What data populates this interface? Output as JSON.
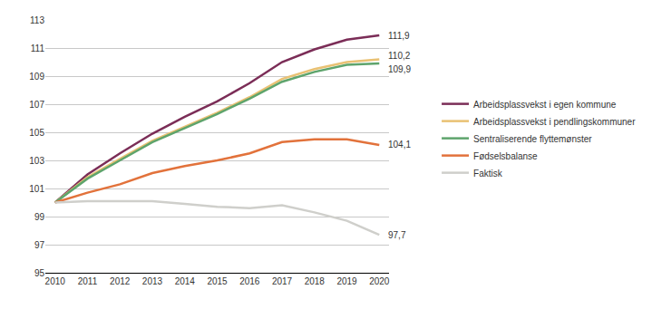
{
  "chart_data": {
    "type": "line",
    "x": [
      2010,
      2011,
      2012,
      2013,
      2014,
      2015,
      2016,
      2017,
      2018,
      2019,
      2020
    ],
    "xlim": [
      2009.7,
      2020.3
    ],
    "xticks": [
      2010,
      2011,
      2012,
      2013,
      2014,
      2015,
      2016,
      2017,
      2018,
      2019,
      2020
    ],
    "ylim": [
      95,
      113
    ],
    "yticks": [
      95,
      97,
      99,
      101,
      103,
      105,
      107,
      109,
      111,
      113
    ],
    "grid": true,
    "legend": "right",
    "data_labels": true,
    "series": [
      {
        "name": "Arbeidsplassvekst i egen kommune",
        "color": "#7b2d57",
        "values": [
          100,
          102.0,
          103.5,
          104.9,
          106.1,
          107.2,
          108.5,
          110.0,
          110.9,
          111.6,
          111.9
        ],
        "value_labels": [
          null,
          null,
          null,
          null,
          null,
          null,
          null,
          null,
          null,
          null,
          "111,9"
        ]
      },
      {
        "name": "Arbeidsplassvekst i pendlingskommuner",
        "color": "#e9c173",
        "values": [
          100,
          101.8,
          103.1,
          104.4,
          105.4,
          106.4,
          107.5,
          108.8,
          109.5,
          110.0,
          110.2
        ],
        "value_labels": [
          null,
          null,
          null,
          null,
          null,
          null,
          null,
          null,
          null,
          null,
          "110,2"
        ]
      },
      {
        "name": "Sentraliserende flyttemønster",
        "color": "#5ea46c",
        "values": [
          100,
          101.7,
          103.0,
          104.3,
          105.3,
          106.3,
          107.4,
          108.6,
          109.3,
          109.8,
          109.9
        ],
        "value_labels": [
          null,
          null,
          null,
          null,
          null,
          null,
          null,
          null,
          null,
          null,
          "109,9"
        ]
      },
      {
        "name": "Fødselsbalanse",
        "color": "#e2723b",
        "values": [
          100,
          100.7,
          101.3,
          102.1,
          102.6,
          103.0,
          103.5,
          104.3,
          104.5,
          104.5,
          104.1
        ],
        "value_labels": [
          null,
          null,
          null,
          null,
          null,
          null,
          null,
          null,
          null,
          null,
          "104,1"
        ]
      },
      {
        "name": "Faktisk",
        "color": "#cfcfcb",
        "values": [
          100,
          100.1,
          100.1,
          100.1,
          99.9,
          99.7,
          99.6,
          99.8,
          99.3,
          98.7,
          97.7
        ],
        "value_labels": [
          null,
          null,
          null,
          null,
          null,
          null,
          null,
          null,
          null,
          null,
          "97,7"
        ]
      }
    ]
  }
}
